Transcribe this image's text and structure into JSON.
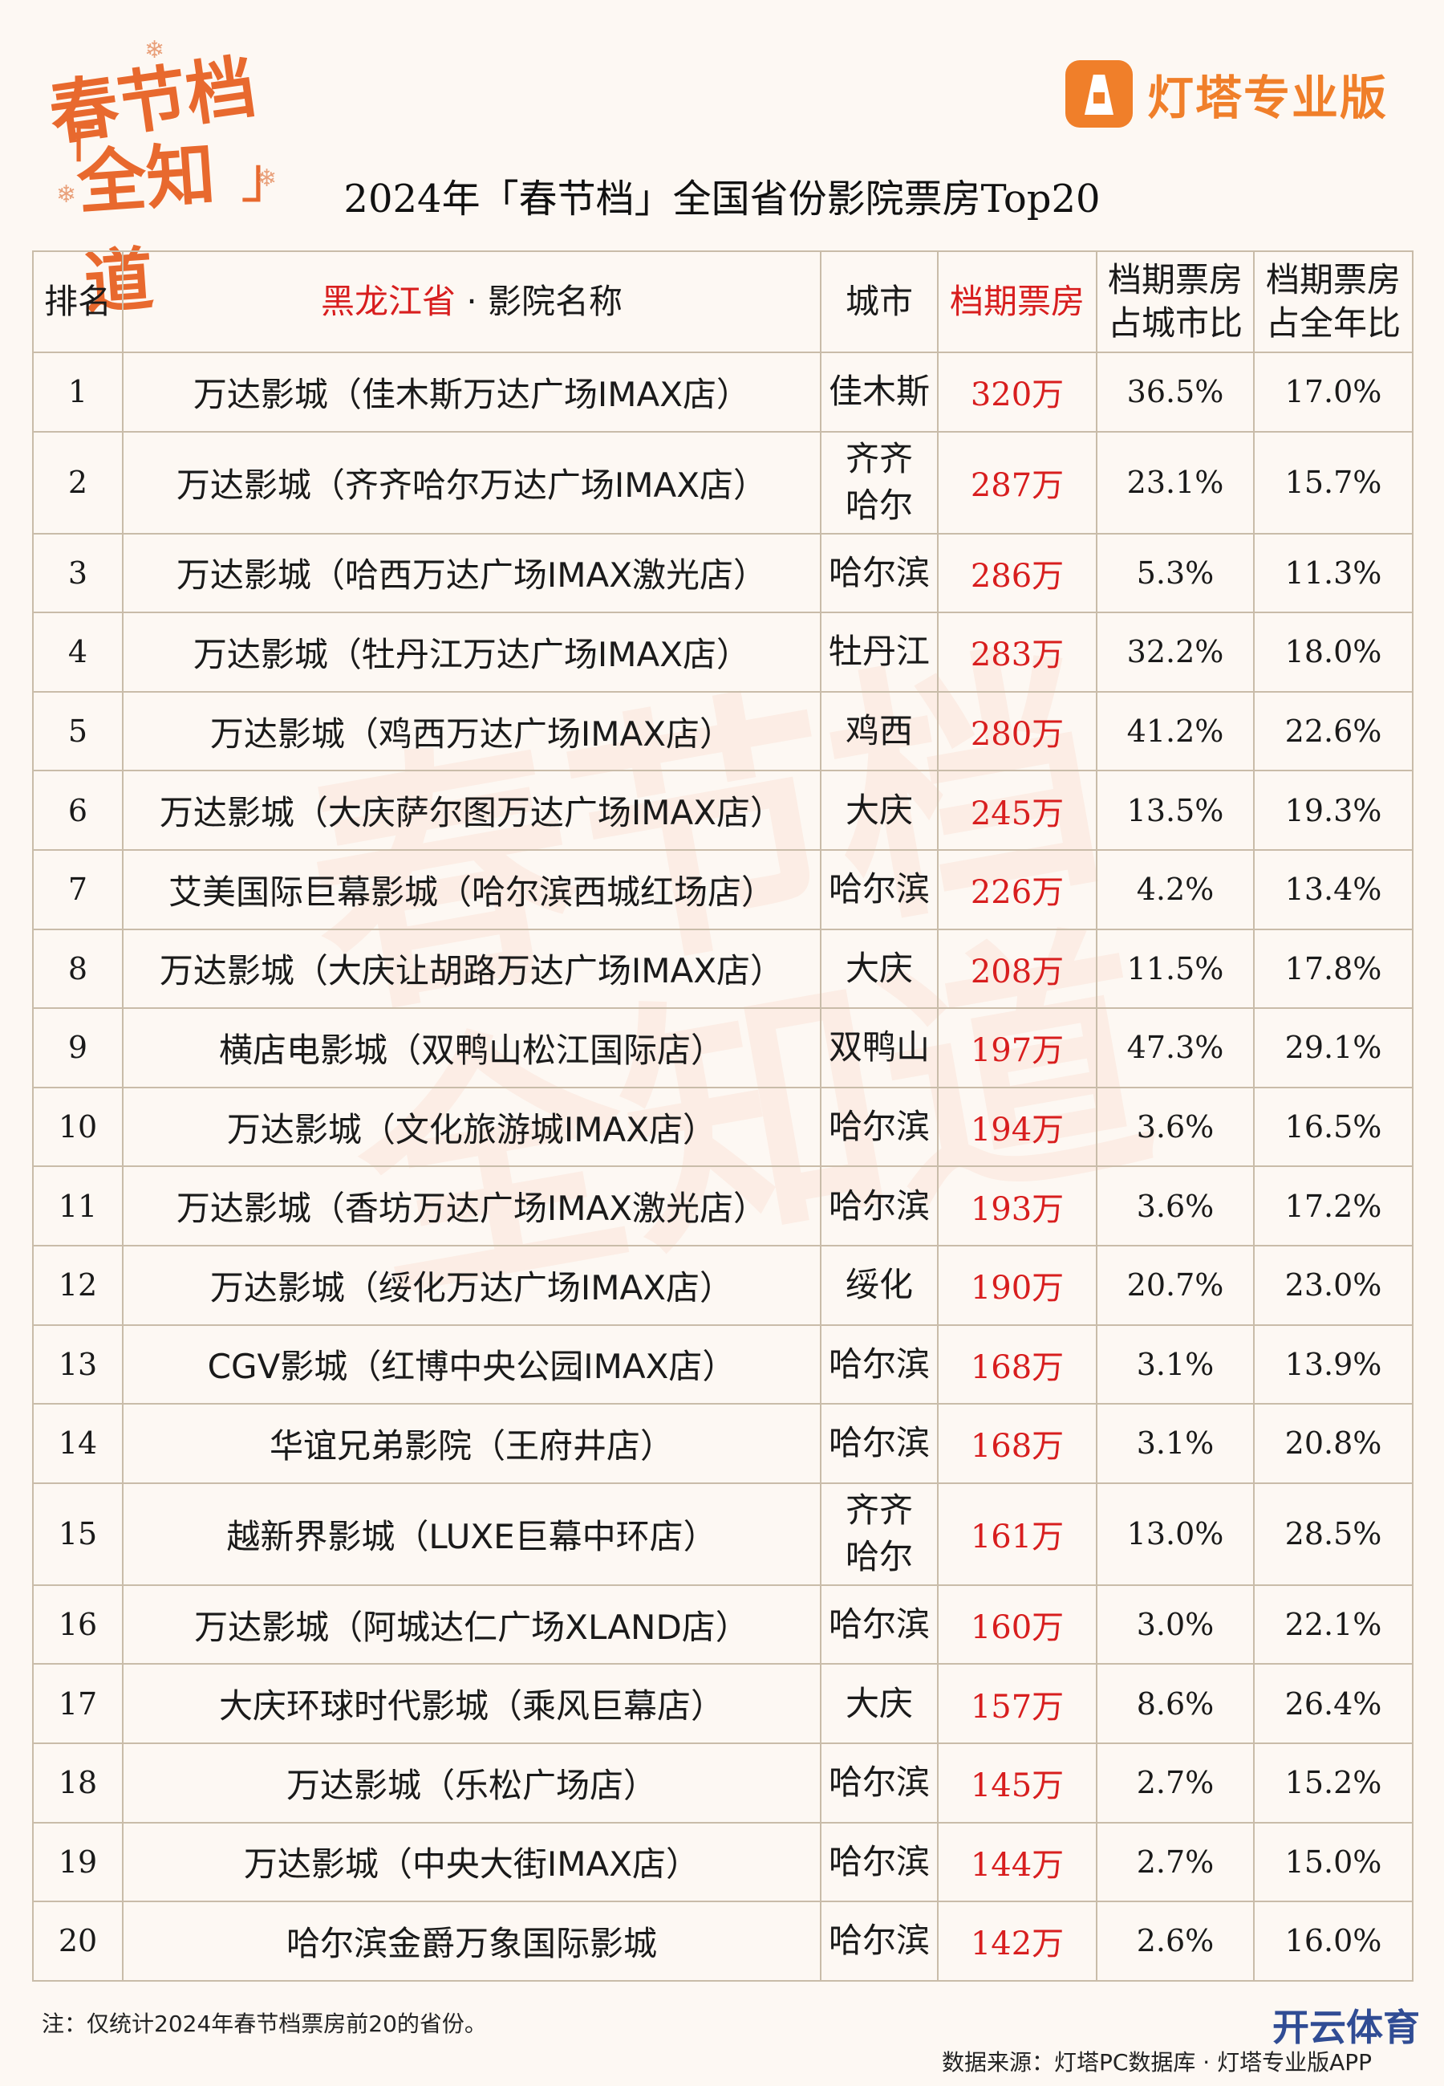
{
  "logo": {
    "line1": "春节档",
    "line2": "全知道"
  },
  "brand": {
    "name": "灯塔专业版"
  },
  "title": "2024年「春节档」全国省份影院票房Top20",
  "table": {
    "headers": {
      "rank": "排名",
      "province": "黑龙江省",
      "name_suffix": "· 影院名称",
      "city": "城市",
      "boxoffice": "档期票房",
      "city_ratio_l1": "档期票房",
      "city_ratio_l2": "占城市比",
      "year_ratio_l1": "档期票房",
      "year_ratio_l2": "占全年比"
    },
    "rows": [
      {
        "rank": "1",
        "name": "万达影城（佳木斯万达广场IMAX店）",
        "city": [
          "佳木斯"
        ],
        "box": "320万",
        "city_pct": "36.5%",
        "year_pct": "17.0%"
      },
      {
        "rank": "2",
        "name": "万达影城（齐齐哈尔万达广场IMAX店）",
        "city": [
          "齐齐",
          "哈尔"
        ],
        "box": "287万",
        "city_pct": "23.1%",
        "year_pct": "15.7%"
      },
      {
        "rank": "3",
        "name": "万达影城（哈西万达广场IMAX激光店）",
        "city": [
          "哈尔滨"
        ],
        "box": "286万",
        "city_pct": "5.3%",
        "year_pct": "11.3%"
      },
      {
        "rank": "4",
        "name": "万达影城（牡丹江万达广场IMAX店）",
        "city": [
          "牡丹江"
        ],
        "box": "283万",
        "city_pct": "32.2%",
        "year_pct": "18.0%"
      },
      {
        "rank": "5",
        "name": "万达影城（鸡西万达广场IMAX店）",
        "city": [
          "鸡西"
        ],
        "box": "280万",
        "city_pct": "41.2%",
        "year_pct": "22.6%"
      },
      {
        "rank": "6",
        "name": "万达影城（大庆萨尔图万达广场IMAX店）",
        "city": [
          "大庆"
        ],
        "box": "245万",
        "city_pct": "13.5%",
        "year_pct": "19.3%"
      },
      {
        "rank": "7",
        "name": "艾美国际巨幕影城（哈尔滨西城红场店）",
        "city": [
          "哈尔滨"
        ],
        "box": "226万",
        "city_pct": "4.2%",
        "year_pct": "13.4%"
      },
      {
        "rank": "8",
        "name": "万达影城（大庆让胡路万达广场IMAX店）",
        "city": [
          "大庆"
        ],
        "box": "208万",
        "city_pct": "11.5%",
        "year_pct": "17.8%"
      },
      {
        "rank": "9",
        "name": "横店电影城（双鸭山松江国际店）",
        "city": [
          "双鸭山"
        ],
        "box": "197万",
        "city_pct": "47.3%",
        "year_pct": "29.1%"
      },
      {
        "rank": "10",
        "name": "万达影城（文化旅游城IMAX店）",
        "city": [
          "哈尔滨"
        ],
        "box": "194万",
        "city_pct": "3.6%",
        "year_pct": "16.5%"
      },
      {
        "rank": "11",
        "name": "万达影城（香坊万达广场IMAX激光店）",
        "city": [
          "哈尔滨"
        ],
        "box": "193万",
        "city_pct": "3.6%",
        "year_pct": "17.2%"
      },
      {
        "rank": "12",
        "name": "万达影城（绥化万达广场IMAX店）",
        "city": [
          "绥化"
        ],
        "box": "190万",
        "city_pct": "20.7%",
        "year_pct": "23.0%"
      },
      {
        "rank": "13",
        "name": "CGV影城（红博中央公园IMAX店）",
        "city": [
          "哈尔滨"
        ],
        "box": "168万",
        "city_pct": "3.1%",
        "year_pct": "13.9%"
      },
      {
        "rank": "14",
        "name": "华谊兄弟影院（王府井店）",
        "city": [
          "哈尔滨"
        ],
        "box": "168万",
        "city_pct": "3.1%",
        "year_pct": "20.8%"
      },
      {
        "rank": "15",
        "name": "越新界影城（LUXE巨幕中环店）",
        "city": [
          "齐齐",
          "哈尔"
        ],
        "box": "161万",
        "city_pct": "13.0%",
        "year_pct": "28.5%"
      },
      {
        "rank": "16",
        "name": "万达影城（阿城达仁广场XLAND店）",
        "city": [
          "哈尔滨"
        ],
        "box": "160万",
        "city_pct": "3.0%",
        "year_pct": "22.1%"
      },
      {
        "rank": "17",
        "name": "大庆环球时代影城（乘风巨幕店）",
        "city": [
          "大庆"
        ],
        "box": "157万",
        "city_pct": "8.6%",
        "year_pct": "26.4%"
      },
      {
        "rank": "18",
        "name": "万达影城（乐松广场店）",
        "city": [
          "哈尔滨"
        ],
        "box": "145万",
        "city_pct": "2.7%",
        "year_pct": "15.2%"
      },
      {
        "rank": "19",
        "name": "万达影城（中央大街IMAX店）",
        "city": [
          "哈尔滨"
        ],
        "box": "144万",
        "city_pct": "2.7%",
        "year_pct": "15.0%"
      },
      {
        "rank": "20",
        "name": "哈尔滨金爵万象国际影城",
        "city": [
          "哈尔滨"
        ],
        "box": "142万",
        "city_pct": "2.6%",
        "year_pct": "16.0%"
      }
    ]
  },
  "footnote": "注：仅统计2024年春节档票房前20的省份。",
  "source": "数据来源：灯塔PC数据库 · 灯塔专业版APP",
  "corner_mark": "开云体育",
  "colors": {
    "accent": "#f07f2a",
    "red": "#d81e1e",
    "border": "#c9bca9",
    "background": "#fdf8f3"
  }
}
